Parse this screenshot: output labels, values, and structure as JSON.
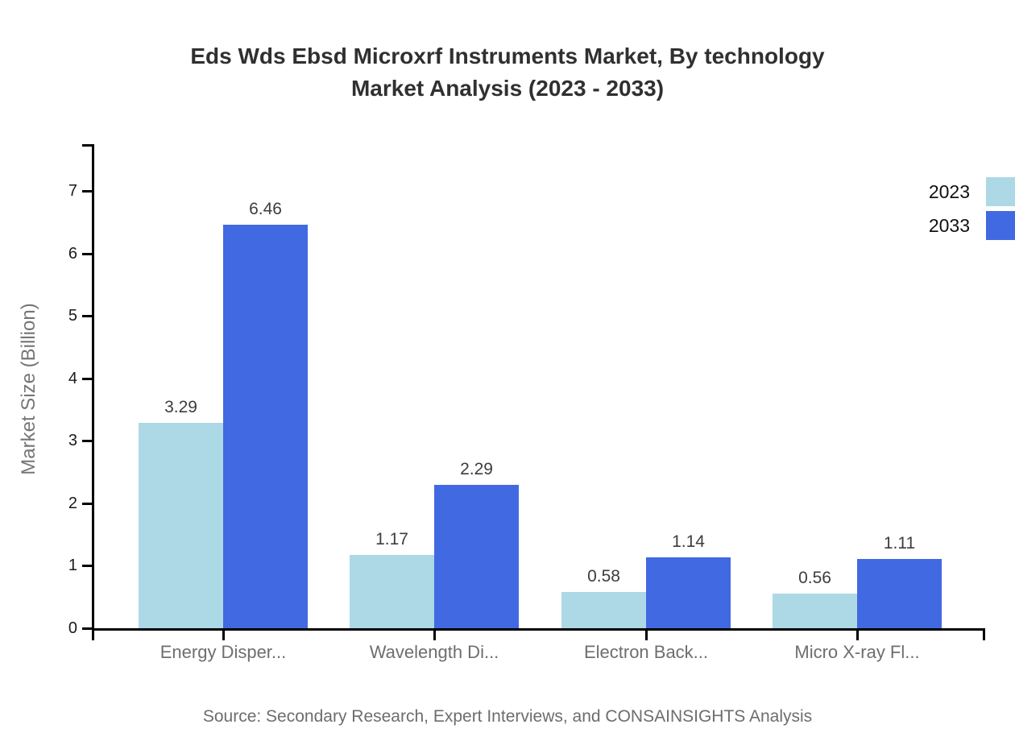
{
  "chart_data": {
    "type": "bar",
    "title": "Eds Wds Ebsd Microxrf Instruments Market, By technology Market Analysis (2023 - 2033)",
    "title_line1": "Eds Wds Ebsd Microxrf Instruments Market, By technology",
    "title_line2": "Market Analysis (2023 - 2033)",
    "categories": [
      "Energy Disper...",
      "Wavelength Di...",
      "Electron Back...",
      "Micro X-ray Fl..."
    ],
    "series": [
      {
        "name": "2023",
        "values": [
          3.29,
          1.17,
          0.58,
          0.56
        ]
      },
      {
        "name": "2033",
        "values": [
          6.46,
          2.29,
          1.14,
          1.11
        ]
      }
    ],
    "value_label_format": "2-decimals",
    "xlabel": "",
    "ylabel": "Market Size (Billion)",
    "y_ticks": [
      0,
      1,
      2,
      3,
      4,
      5,
      6,
      7
    ],
    "ylim": [
      0,
      7.75
    ],
    "grid": false,
    "legend_position": "top-right",
    "bar_value_labels_shown": true
  },
  "legend": {
    "items": [
      {
        "label": "2023",
        "color": "#ADD8E6"
      },
      {
        "label": "2033",
        "color": "#4169E1"
      }
    ]
  },
  "colors": {
    "series_2023": "#ADD8E6",
    "series_2033": "#4169E1",
    "axis": "#000000",
    "title_text": "#303030",
    "y_tick_text": "#1a1a1a",
    "category_text": "#6e6e6e",
    "value_text": "#3d3d3d",
    "ylabel_text": "#767676",
    "source_text": "#6d6d6d",
    "background": "#ffffff"
  },
  "footer": {
    "source": "Source: Secondary Research, Expert Interviews, and CONSAINSIGHTS Analysis"
  }
}
